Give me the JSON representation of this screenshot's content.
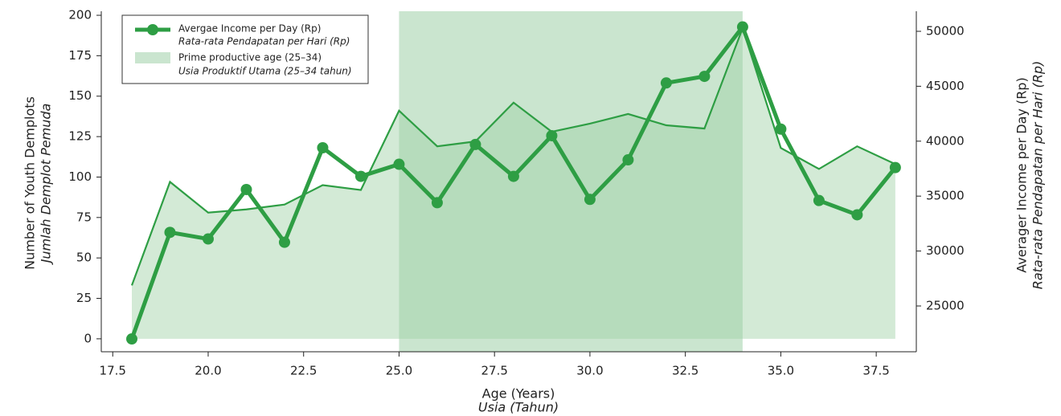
{
  "chart_data": {
    "type": "line",
    "x": [
      18,
      19,
      20,
      21,
      22,
      23,
      24,
      25,
      26,
      27,
      28,
      29,
      30,
      31,
      32,
      33,
      34,
      35,
      36,
      37,
      38
    ],
    "series": [
      {
        "color": "#2e9e44",
        "fill": "#d3ead6",
        "values": [
          33,
          97,
          78,
          80,
          83,
          95,
          92,
          141,
          119,
          122,
          146,
          128,
          133,
          139,
          132,
          130,
          192,
          118,
          105,
          119,
          108
        ]
      },
      {
        "name": "Avergae Income per Day (Rp)",
        "name_alt": "Rata-rata Pendapatan per Hari (Rp)",
        "axis": "y2",
        "color": "#2e9e44",
        "values": [
          22000,
          31700,
          31100,
          35600,
          30800,
          39400,
          36800,
          37900,
          34400,
          39700,
          36800,
          40500,
          34700,
          38300,
          45300,
          45900,
          50400,
          41100,
          34600,
          33300,
          37600
        ]
      }
    ],
    "span": {
      "from": 25,
      "to": 34,
      "color": "#9fd0a8",
      "name": "Prime productive age (25–34)",
      "name_alt": "Usia Produktif Utama (25–34 tahun)"
    },
    "xlabel": "Age (Years)",
    "xlabel_alt": "Usia (Tahun)",
    "ylabel": "Number of Youth Demplots",
    "ylabel_alt": "Jumlah Demplot Pemuda",
    "y2label": "Averager Income per Day (Rp)",
    "y2label_alt": "Rata-rata Pendapatan per Hari (Rp)",
    "xlim": [
      17.2,
      38.55
    ],
    "xticks": [
      {
        "value": 17.5,
        "label": "17.5"
      },
      {
        "value": 20,
        "label": "20.0"
      },
      {
        "value": 22.5,
        "label": "22.5"
      },
      {
        "value": 25,
        "label": "25.0"
      },
      {
        "value": 27.5,
        "label": "27.5"
      },
      {
        "value": 30,
        "label": "30.0"
      },
      {
        "value": 32.5,
        "label": "32.5"
      },
      {
        "value": 35,
        "label": "35.0"
      },
      {
        "value": 37.5,
        "label": "37.5"
      }
    ],
    "ylim": [
      -8,
      202.5
    ],
    "yticks": [
      0,
      25,
      50,
      75,
      100,
      125,
      150,
      175,
      200
    ],
    "y2lim": [
      20833,
      51827
    ],
    "y2ticks": [
      25000,
      30000,
      35000,
      40000,
      45000,
      50000
    ],
    "legend": "upper left"
  }
}
